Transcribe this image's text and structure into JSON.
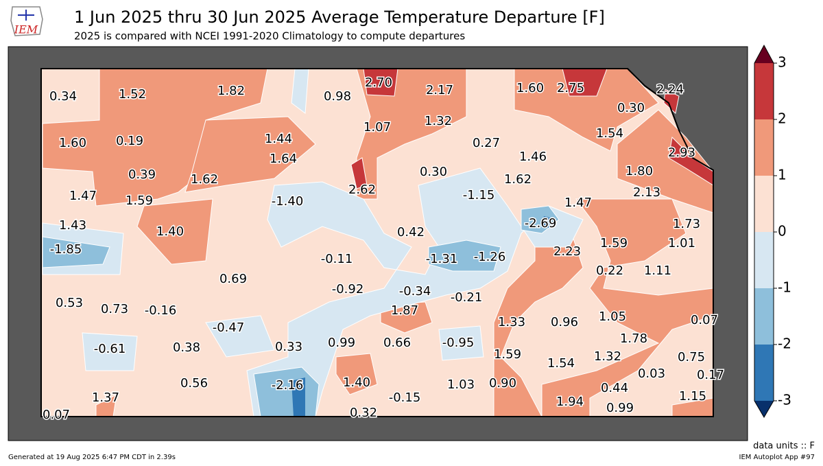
{
  "header": {
    "title": "1 Jun 2025 thru 30 Jun 2025 Average Temperature Departure [F]",
    "subtitle": "2025 is compared with NCEI 1991-2020 Climatology to compute departures",
    "logo": "IEM"
  },
  "colorbar": {
    "ticks": [
      3,
      2,
      1,
      0,
      -1,
      -2,
      -3
    ],
    "colors": [
      "#c6373a",
      "#f0997a",
      "#fce1d3",
      "#d7e7f2",
      "#8ebfdb",
      "#2f77b5"
    ],
    "over": "#67001f",
    "under": "#08306b"
  },
  "stations": [
    "0.34",
    "1.52",
    "1.82",
    "0.98",
    "2.70",
    "2.17",
    "1.60",
    "2.75",
    "2.24",
    "0.30",
    "1.07",
    "1.32",
    "1.54",
    "1.60",
    "0.19",
    "1.44",
    "0.27",
    "2.93",
    "1.64",
    "1.46",
    "0.39",
    "1.62",
    "0.30",
    "1.62",
    "1.80",
    "2.62",
    "2.13",
    "1.47",
    "1.59",
    "-1.40",
    "-1.15",
    "1.47",
    "-2.69",
    "1.73",
    "1.43",
    "1.40",
    "0.42",
    "1.59",
    "1.01",
    "-1.85",
    "2.23",
    "-0.11",
    "-1.31",
    "-1.26",
    "0.22",
    "1.11",
    "0.69",
    "-0.92",
    "-0.34",
    "-0.21",
    "0.53",
    "0.73",
    "-0.16",
    "1.87",
    "1.05",
    "0.07",
    "1.33",
    "0.96",
    "-0.47",
    "1.78",
    "-0.95",
    "0.99",
    "0.66",
    "0.33",
    "0.38",
    "-0.61",
    "1.59",
    "1.32",
    "0.75",
    "1.54",
    "0.03",
    "0.17",
    "-2.16",
    "1.40",
    "0.56",
    "1.03",
    "0.90",
    "0.44",
    "1.37",
    "-0.15",
    "1.15",
    "1.94",
    "0.99",
    "0.32",
    "0.07"
  ],
  "footer": {
    "units": "data units :: F",
    "generated": "Generated at 19 Aug 2025 6:47 PM CDT in 2.39s",
    "app": "IEM Autoplot App #97"
  }
}
